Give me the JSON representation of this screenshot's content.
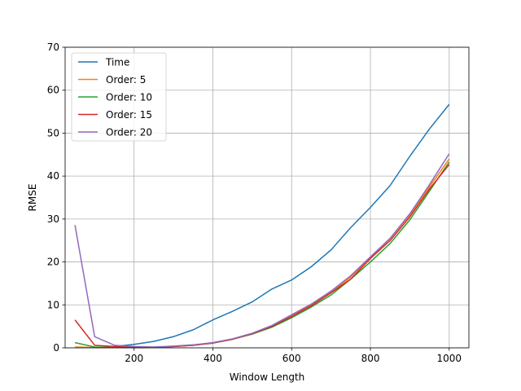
{
  "chart_data": {
    "type": "line",
    "title": "",
    "xlabel": "Window Length",
    "ylabel": "RMSE",
    "xlim": [
      25,
      1050
    ],
    "ylim": [
      0,
      70
    ],
    "xticks": [
      200,
      400,
      600,
      800,
      1000
    ],
    "yticks": [
      0,
      10,
      20,
      30,
      40,
      50,
      60,
      70
    ],
    "grid": true,
    "legend_position": "top-left",
    "x": [
      50,
      100,
      150,
      200,
      250,
      300,
      350,
      400,
      450,
      500,
      550,
      600,
      650,
      700,
      750,
      800,
      850,
      900,
      950,
      1000
    ],
    "series": [
      {
        "name": "Time",
        "color": "#1f77b4",
        "values": [
          null,
          null,
          0.3,
          0.8,
          1.5,
          2.6,
          4.2,
          6.5,
          8.5,
          10.7,
          13.7,
          15.8,
          18.9,
          22.8,
          28.0,
          32.7,
          37.8,
          44.6,
          51.0,
          56.7
        ]
      },
      {
        "name": "Order: 5",
        "color": "#ff7f0e",
        "values": [
          0.2,
          0.1,
          0.05,
          0.05,
          0.1,
          0.3,
          0.6,
          1.2,
          2.0,
          3.3,
          5.0,
          7.4,
          10.0,
          13.0,
          16.5,
          21.0,
          25.5,
          31.0,
          37.5,
          44.0
        ]
      },
      {
        "name": "Order: 10",
        "color": "#2ca02c",
        "values": [
          1.2,
          0.2,
          0.1,
          0.1,
          0.15,
          0.3,
          0.6,
          1.1,
          2.0,
          3.2,
          4.8,
          7.0,
          9.5,
          12.3,
          16.0,
          20.0,
          24.3,
          29.8,
          36.5,
          43.3
        ]
      },
      {
        "name": "Order: 15",
        "color": "#d62728",
        "values": [
          6.5,
          0.6,
          0.3,
          0.1,
          0.15,
          0.3,
          0.6,
          1.1,
          2.0,
          3.3,
          5.0,
          7.3,
          9.8,
          12.8,
          16.0,
          20.8,
          25.0,
          30.5,
          37.0,
          42.7
        ]
      },
      {
        "name": "Order: 20",
        "color": "#9467bd",
        "values": [
          28.6,
          2.6,
          0.6,
          0.3,
          0.2,
          0.4,
          0.7,
          1.2,
          2.1,
          3.4,
          5.2,
          7.7,
          10.2,
          13.2,
          16.8,
          21.2,
          25.5,
          31.2,
          38.0,
          45.2
        ]
      }
    ]
  }
}
